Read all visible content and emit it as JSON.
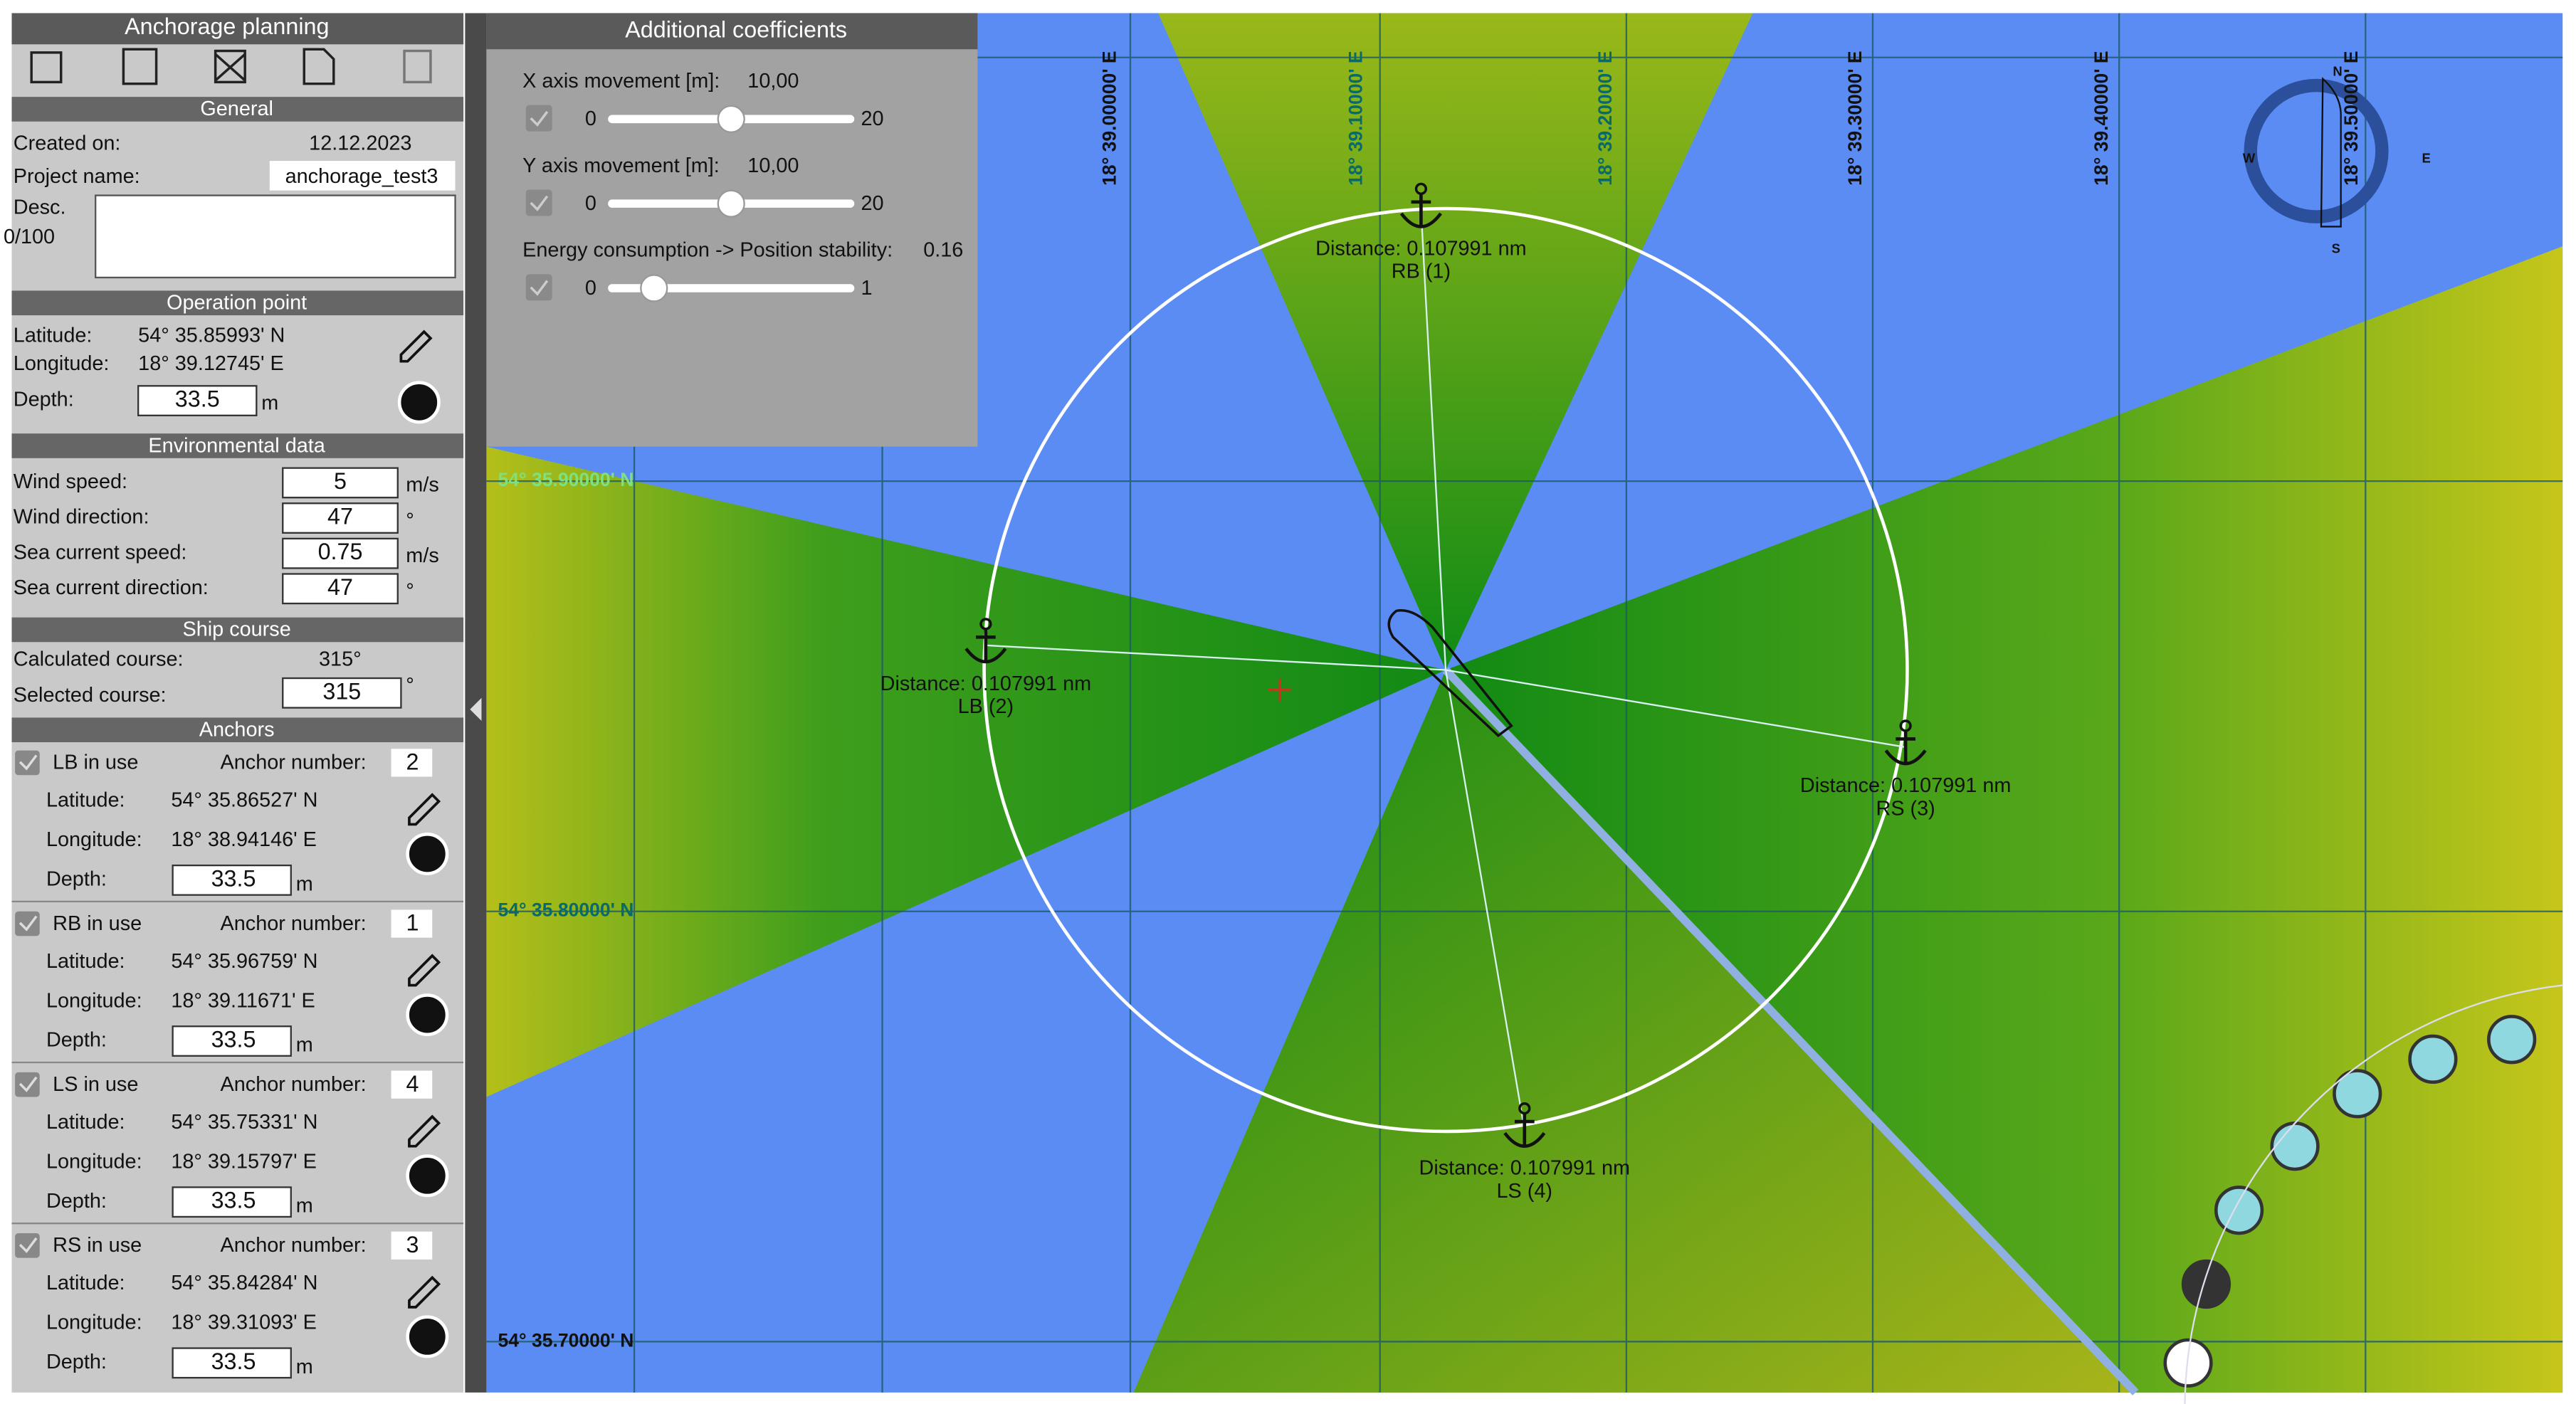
{
  "sidebar": {
    "title": "Anchorage planning",
    "general": {
      "heading": "General",
      "created_label": "Created on:",
      "created_value": "12.12.2023",
      "project_label": "Project name:",
      "project_value": "anchorage_test3",
      "desc_label": "Desc.",
      "desc_count": "0/100"
    },
    "operation_point": {
      "heading": "Operation point",
      "latitude_label": "Latitude:",
      "latitude": "54° 35.85993' N",
      "longitude_label": "Longitude:",
      "longitude": "18° 39.12745' E",
      "depth_label": "Depth:",
      "depth": "33.5",
      "depth_unit": "m"
    },
    "environment": {
      "heading": "Environmental data",
      "rows": [
        {
          "label": "Wind speed:",
          "value": "5",
          "unit": "m/s"
        },
        {
          "label": "Wind direction:",
          "value": "47",
          "unit": "°"
        },
        {
          "label": "Sea current speed:",
          "value": "0.75",
          "unit": "m/s"
        },
        {
          "label": "Sea current direction:",
          "value": "47",
          "unit": "°"
        }
      ]
    },
    "ship_course": {
      "heading": "Ship course",
      "calculated_label": "Calculated course:",
      "calculated_value": "315°",
      "selected_label": "Selected course:",
      "selected_value": "315",
      "selected_unit": "°"
    },
    "anchors": {
      "heading": "Anchors",
      "number_label": "Anchor number:",
      "latitude_label": "Latitude:",
      "longitude_label": "Longitude:",
      "depth_label": "Depth:",
      "depth_unit": "m",
      "items": [
        {
          "in_use": "LB in use",
          "number": "2",
          "latitude": "54° 35.86527' N",
          "longitude": "18° 38.94146' E",
          "depth": "33.5"
        },
        {
          "in_use": "RB in use",
          "number": "1",
          "latitude": "54° 35.96759' N",
          "longitude": "18° 39.11671' E",
          "depth": "33.5"
        },
        {
          "in_use": "LS in use",
          "number": "4",
          "latitude": "54° 35.75331' N",
          "longitude": "18° 39.15797' E",
          "depth": "33.5"
        },
        {
          "in_use": "RS in use",
          "number": "3",
          "latitude": "54° 35.84284' N",
          "longitude": "18° 39.31093' E",
          "depth": "33.5"
        }
      ]
    }
  },
  "coefficients": {
    "title": "Additional coefficients",
    "sliders": [
      {
        "label": "X axis movement [m]:",
        "value": "10,00",
        "min": "0",
        "max": "20"
      },
      {
        "label": "Y axis movement [m]:",
        "value": "10,00",
        "min": "0",
        "max": "20"
      },
      {
        "label": "Energy consumption -> Position stability:",
        "value": "0.16",
        "min": "0",
        "max": "1"
      }
    ]
  },
  "map": {
    "longitudes": [
      "18° 39.00000' E",
      "18° 39.10000' E",
      "18° 39.20000' E",
      "18° 39.30000' E",
      "18° 39.40000' E",
      "18° 39.50000' E"
    ],
    "latitudes": [
      "54° 35.90000' N",
      "54° 35.80000' N",
      "54° 35.70000' N"
    ],
    "anchors": [
      {
        "distance": "Distance: 0.107991 nm",
        "name": "RB (1)"
      },
      {
        "distance": "Distance: 0.107991 nm",
        "name": "LB (2)"
      },
      {
        "distance": "Distance: 0.107991 nm",
        "name": "RS (3)"
      },
      {
        "distance": "Distance: 0.107991 nm",
        "name": "LS (4)"
      }
    ],
    "compass": {
      "n": "N",
      "e": "E",
      "s": "S",
      "w": "W"
    }
  }
}
